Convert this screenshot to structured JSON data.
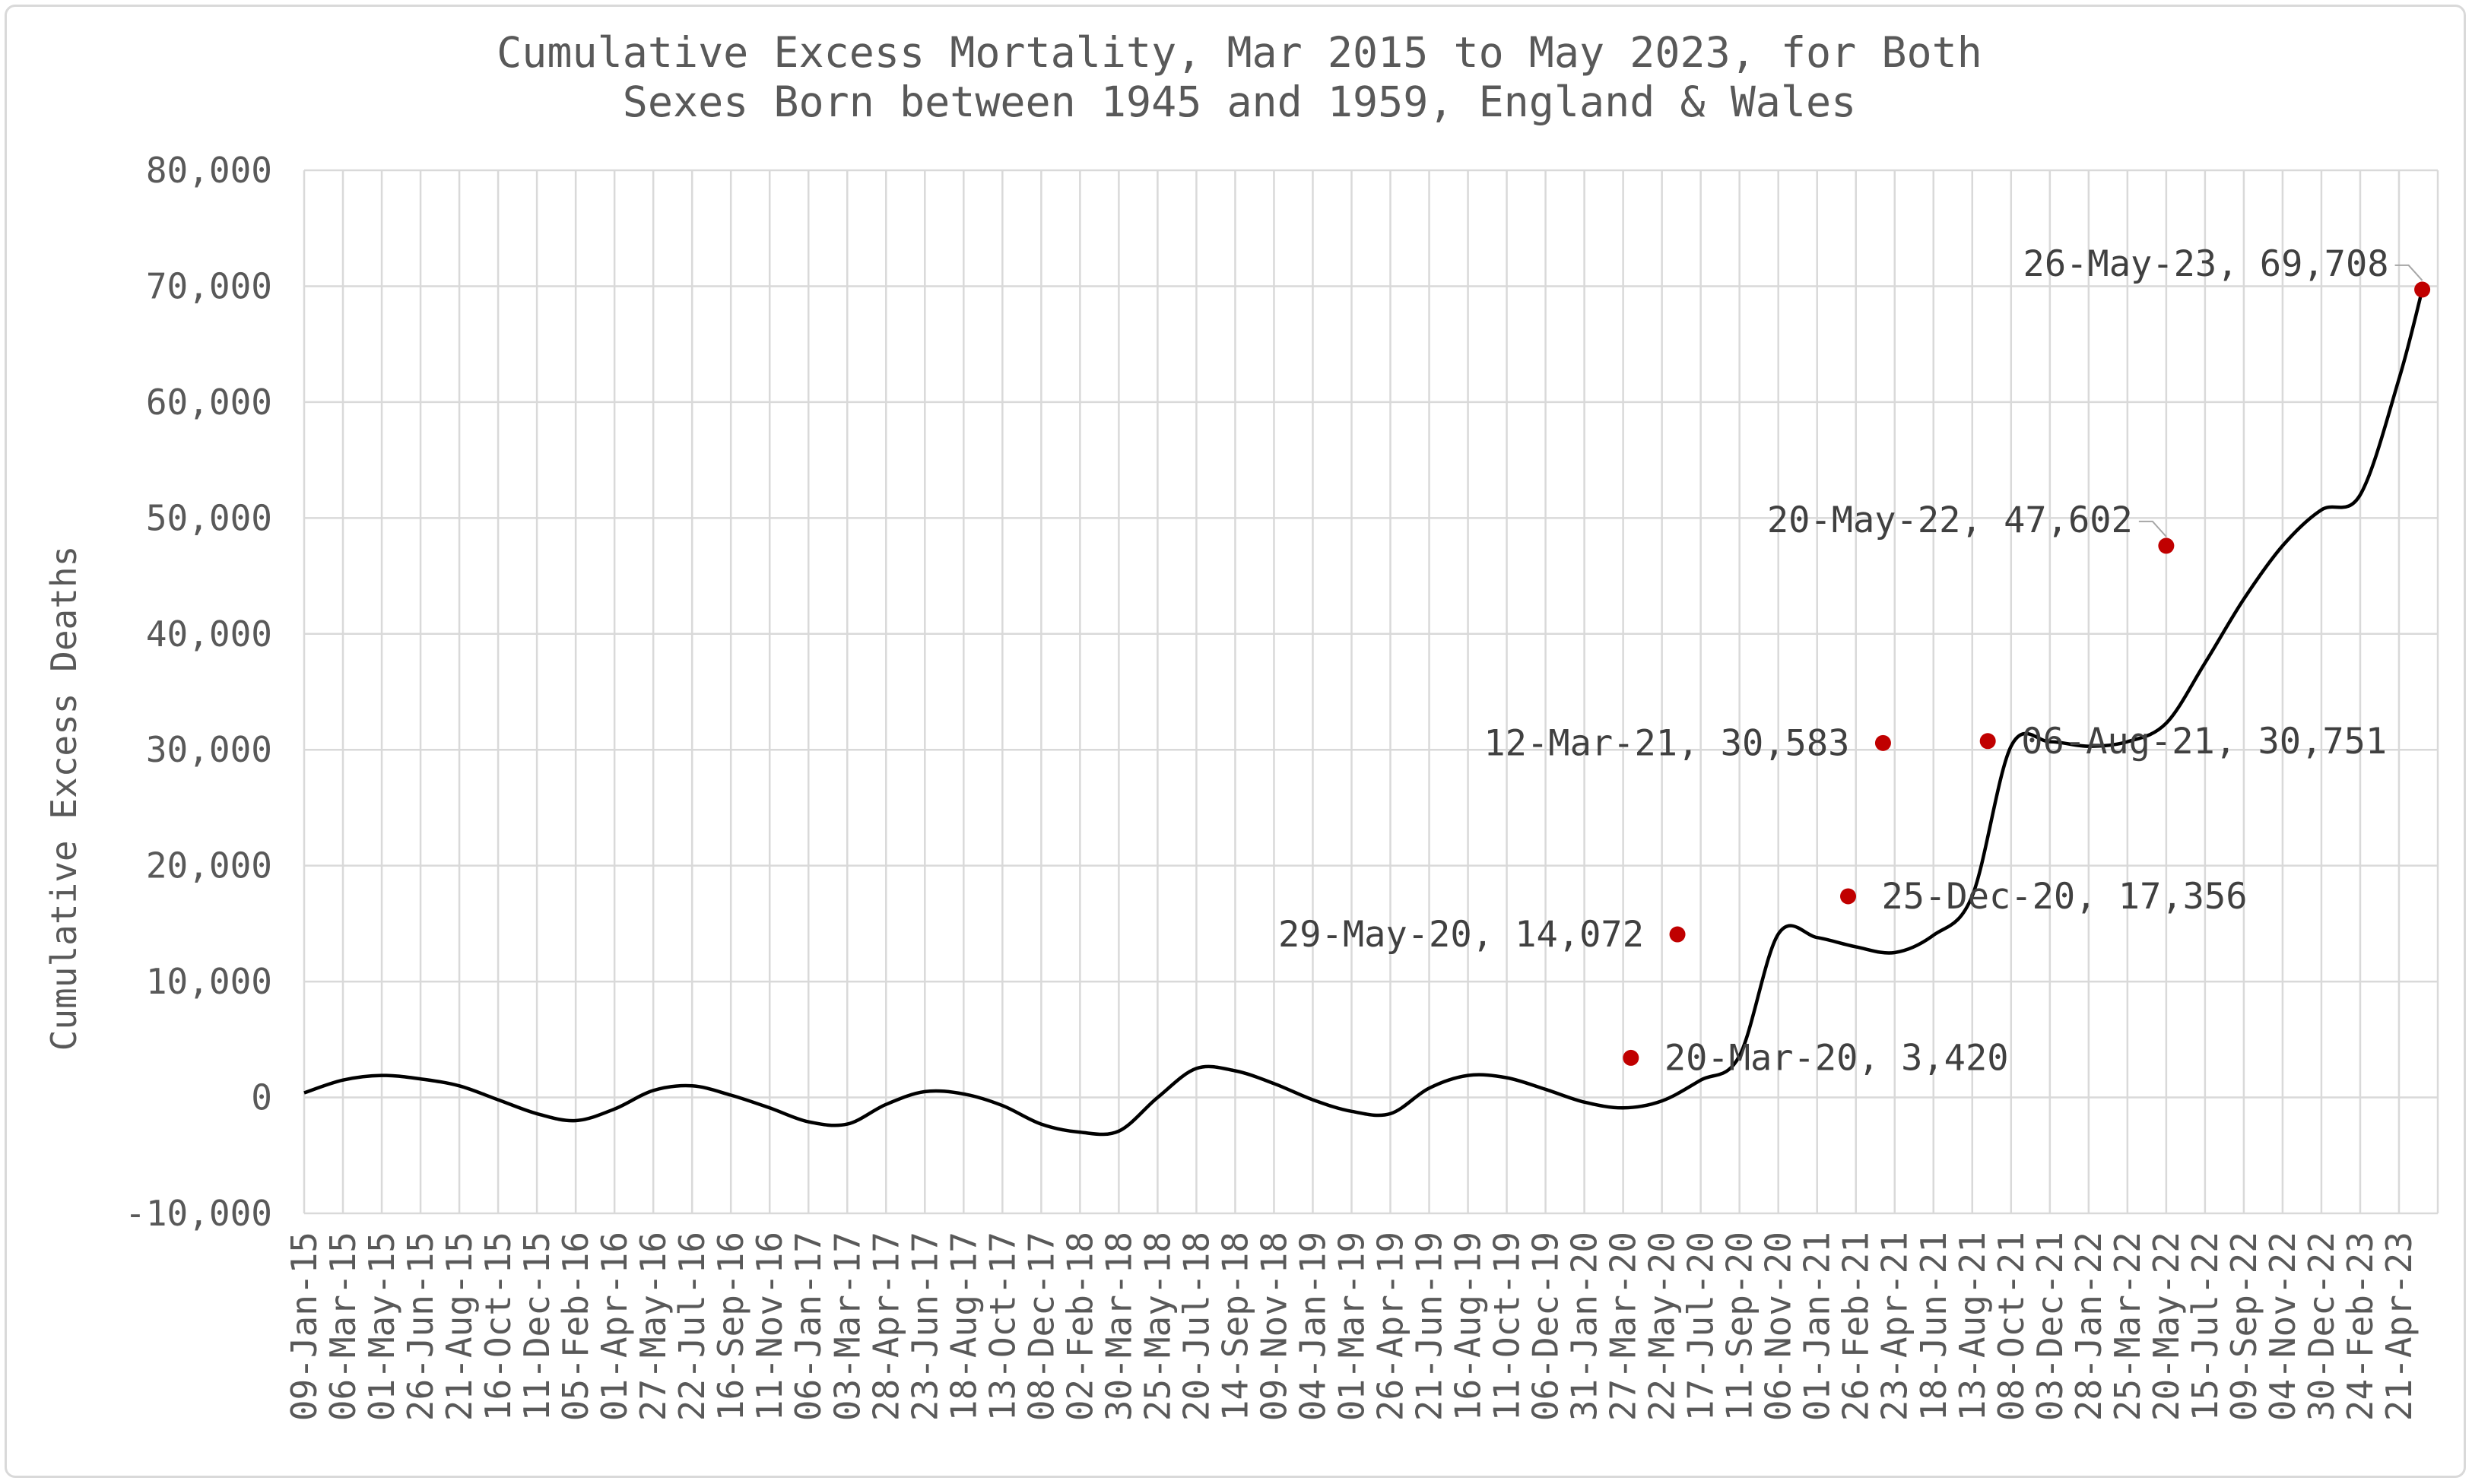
{
  "chart_data": {
    "type": "line",
    "title_lines": [
      "Cumulative Excess Mortality, Mar 2015 to May 2023, for Both",
      "Sexes Born between 1945 and 1959, England & Wales"
    ],
    "ylabel": "Cumulative Excess Deaths",
    "xlabel": "",
    "ylim": [
      -10000,
      80000
    ],
    "y_ticks": [
      -10000,
      0,
      10000,
      20000,
      30000,
      40000,
      50000,
      60000,
      70000,
      80000
    ],
    "y_tick_labels": [
      "-10,000",
      "0",
      "10,000",
      "20,000",
      "30,000",
      "40,000",
      "50,000",
      "60,000",
      "70,000",
      "80,000"
    ],
    "x_tick_labels": [
      "09-Jan-15",
      "06-Mar-15",
      "01-May-15",
      "26-Jun-15",
      "21-Aug-15",
      "16-Oct-15",
      "11-Dec-15",
      "05-Feb-16",
      "01-Apr-16",
      "27-May-16",
      "22-Jul-16",
      "16-Sep-16",
      "11-Nov-16",
      "06-Jan-17",
      "03-Mar-17",
      "28-Apr-17",
      "23-Jun-17",
      "18-Aug-17",
      "13-Oct-17",
      "08-Dec-17",
      "02-Feb-18",
      "30-Mar-18",
      "25-May-18",
      "20-Jul-18",
      "14-Sep-18",
      "09-Nov-18",
      "04-Jan-19",
      "01-Mar-19",
      "26-Apr-19",
      "21-Jun-19",
      "16-Aug-19",
      "11-Oct-19",
      "06-Dec-19",
      "31-Jan-20",
      "27-Mar-20",
      "22-May-20",
      "17-Jul-20",
      "11-Sep-20",
      "06-Nov-20",
      "01-Jan-21",
      "26-Feb-21",
      "23-Apr-21",
      "18-Jun-21",
      "13-Aug-21",
      "08-Oct-21",
      "03-Dec-21",
      "28-Jan-22",
      "25-Mar-22",
      "20-May-22",
      "15-Jul-22",
      "09-Sep-22",
      "04-Nov-22",
      "30-Dec-22",
      "24-Feb-23",
      "21-Apr-23"
    ],
    "grid": true,
    "line_color": "#000000",
    "marker_color": "#c00000",
    "series": [
      {
        "x": [
          0,
          1,
          2,
          3,
          4,
          5,
          6,
          7,
          8,
          9,
          10,
          11,
          12,
          13,
          14,
          15,
          16,
          17,
          18,
          19,
          20,
          21,
          22,
          23,
          24,
          25,
          26,
          27,
          28,
          29,
          30,
          31,
          32,
          33,
          34,
          35,
          36,
          37,
          38,
          39,
          40,
          41,
          42,
          43,
          44,
          45,
          46,
          47,
          48,
          49,
          50,
          51,
          52,
          53,
          54,
          54.6
        ],
        "values": [
          400,
          1500,
          1900,
          1600,
          1000,
          -200,
          -1400,
          -2000,
          -1000,
          600,
          1000,
          200,
          -900,
          -2100,
          -2300,
          -600,
          500,
          300,
          -700,
          -2300,
          -3000,
          -2900,
          0,
          2500,
          2300,
          1200,
          -200,
          -1200,
          -1400,
          800,
          1900,
          1700,
          700,
          -400,
          -900,
          -300,
          1500,
          3600,
          14100,
          13800,
          13000,
          12500,
          14000,
          17400,
          30300,
          30700,
          30300,
          30700,
          32300,
          37500,
          43000,
          47600,
          50700,
          52000,
          62000,
          69700
        ]
      }
    ],
    "annotations": [
      {
        "x": 34.2,
        "value": 3420,
        "label": "20-Mar-20, 3,420",
        "side": "right"
      },
      {
        "x": 35.4,
        "value": 14072,
        "label": "29-May-20, 14,072",
        "side": "left"
      },
      {
        "x": 39.8,
        "value": 17356,
        "label": "25-Dec-20, 17,356",
        "side": "right"
      },
      {
        "x": 40.7,
        "value": 30583,
        "label": "12-Mar-21, 30,583",
        "side": "left"
      },
      {
        "x": 43.4,
        "value": 30751,
        "label": "06-Aug-21, 30,751",
        "side": "right"
      },
      {
        "x": 48.0,
        "value": 47602,
        "label": "20-May-22, 47,602",
        "side": "left"
      },
      {
        "x": 54.6,
        "value": 69708,
        "label": "26-May-23, 69,708",
        "side": "left"
      }
    ]
  }
}
